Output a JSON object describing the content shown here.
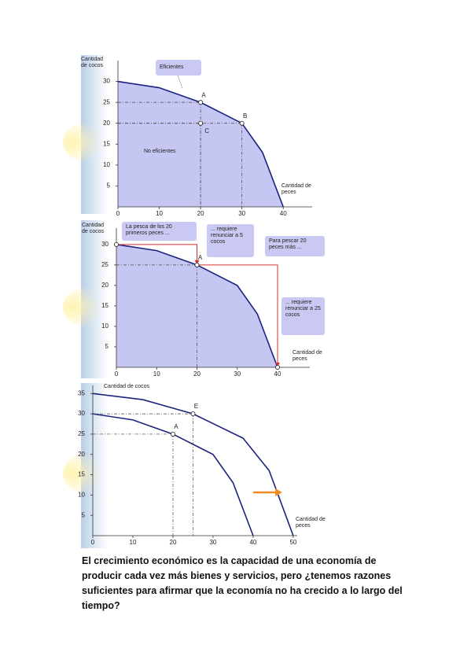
{
  "chart_data": [
    {
      "type": "line",
      "y_label": "Cantidad de cocos",
      "x_label": "Cantidad de peces",
      "xlim": [
        0,
        47
      ],
      "ylim": [
        0,
        35
      ],
      "xticks": [
        0,
        10,
        20,
        30,
        40
      ],
      "yticks": [
        5,
        10,
        15,
        20,
        25,
        30
      ],
      "fill": "#c6c6f3",
      "series": [
        {
          "color": "#1a237e",
          "x": [
            0,
            10,
            20,
            30,
            35,
            40
          ],
          "values": [
            30,
            28.5,
            25,
            20,
            13,
            0
          ]
        }
      ],
      "points": [
        {
          "label": "A",
          "x": 20,
          "y": 25
        },
        {
          "label": "B",
          "x": 30,
          "y": 20
        },
        {
          "label": "C",
          "x": 20,
          "y": 20
        }
      ],
      "annotations": [
        "Eficientes",
        "No eficientes"
      ]
    },
    {
      "type": "line",
      "y_label": "Cantidad de cocos",
      "x_label": "Cantidad de peces",
      "xlim": [
        0,
        48
      ],
      "ylim": [
        0,
        34
      ],
      "xticks": [
        0,
        10,
        20,
        30,
        40
      ],
      "yticks": [
        5,
        10,
        15,
        20,
        25,
        30
      ],
      "fill": "#c6c6f3",
      "arrow_color": "#d32f2f",
      "series": [
        {
          "color": "#1a237e",
          "x": [
            0,
            10,
            20,
            30,
            35,
            40
          ],
          "values": [
            30,
            28.5,
            25,
            20,
            13,
            0
          ]
        }
      ],
      "points": [
        {
          "label": "A",
          "x": 20,
          "y": 25
        }
      ],
      "annotations": [
        "La pesca de los 20 primeros peces ...",
        "... requiere renunciar a 5 cocos",
        "Para pescar 20 peces más ...",
        "... requiere renunciar a 25 cocos"
      ]
    },
    {
      "type": "line",
      "y_label": "Cantidad de cocos",
      "x_label": "Cantidad de peces",
      "xlim": [
        0,
        51
      ],
      "ylim": [
        0,
        37
      ],
      "xticks": [
        0,
        10,
        20,
        30,
        40,
        50
      ],
      "yticks": [
        5,
        10,
        15,
        20,
        25,
        30,
        35
      ],
      "arrow_color": "#f08a24",
      "series": [
        {
          "color": "#1a237e",
          "x": [
            0,
            10,
            20,
            30,
            35,
            40
          ],
          "values": [
            30,
            28.5,
            25,
            20,
            13,
            0
          ]
        },
        {
          "color": "#1a237e",
          "x": [
            0,
            12.5,
            25,
            37.5,
            44,
            50
          ],
          "values": [
            35,
            33.5,
            30,
            24,
            16,
            0
          ]
        }
      ],
      "points": [
        {
          "label": "E",
          "x": 25,
          "y": 30
        },
        {
          "label": "A",
          "x": 20,
          "y": 25
        }
      ]
    }
  ],
  "caption": "El crecimiento económico es la capacidad de una economía de producir cada vez más bienes y servicios, pero ¿tenemos razones suficientes para afirmar que la economía no ha crecido a lo largo del tiempo?"
}
